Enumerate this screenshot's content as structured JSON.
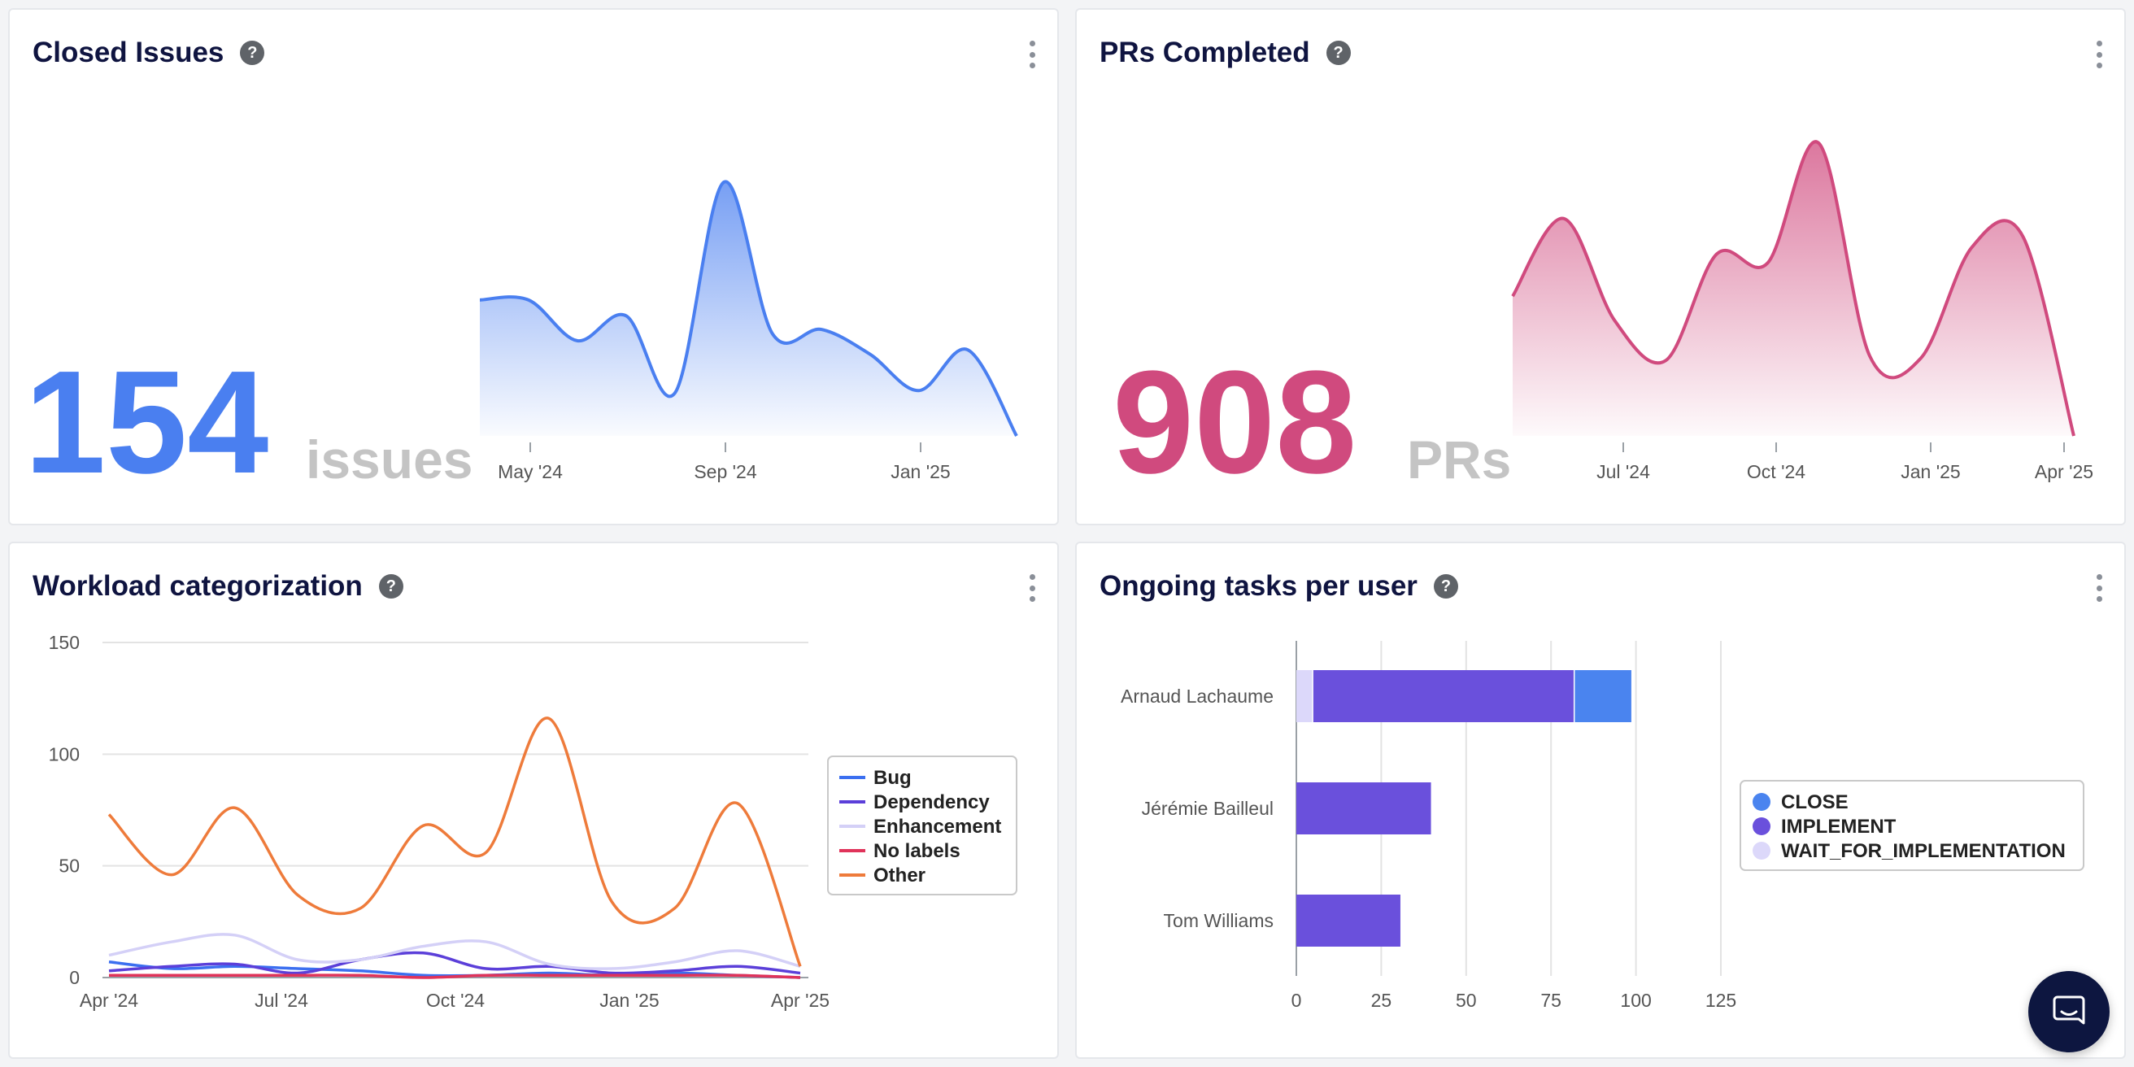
{
  "closed_issues": {
    "title": "Closed Issues",
    "help": "?",
    "value": "154",
    "unit": "issues",
    "color": "#4a7ff0",
    "chart_data": {
      "type": "area",
      "x_ticks": [
        "May '24",
        "Sep '24",
        "Jan '25"
      ],
      "values": [
        60,
        60,
        42,
        53,
        19,
        112,
        45,
        47,
        36,
        20,
        38,
        0
      ],
      "ylim": [
        0,
        112
      ]
    }
  },
  "prs_completed": {
    "title": "PRs Completed",
    "help": "?",
    "value": "908",
    "unit": "PRs",
    "color": "#d04a7e",
    "chart_data": {
      "type": "area",
      "x_ticks": [
        "Jul '24",
        "Oct '24",
        "Jan '25",
        "Apr '25"
      ],
      "values": [
        63,
        98,
        52,
        34,
        82,
        78,
        132,
        36,
        35,
        85,
        90,
        0
      ],
      "ylim": [
        0,
        132
      ]
    }
  },
  "workload": {
    "title": "Workload categorization",
    "help": "?",
    "chart_data": {
      "type": "line",
      "x_ticks": [
        "Apr '24",
        "Jul '24",
        "Oct '24",
        "Jan '25",
        "Apr '25"
      ],
      "y_ticks": [
        "150",
        "100",
        "50",
        "0"
      ],
      "ylim": [
        0,
        150
      ],
      "legend_position": "right",
      "series": [
        {
          "name": "Bug",
          "color": "#3b6ff0",
          "values": [
            7,
            4,
            5,
            4,
            3,
            1,
            1,
            2,
            1,
            2,
            1,
            0
          ]
        },
        {
          "name": "Dependency",
          "color": "#5b3fd9",
          "values": [
            3,
            5,
            6,
            2,
            8,
            11,
            4,
            5,
            2,
            3,
            5,
            2
          ]
        },
        {
          "name": "Enhancement",
          "color": "#d4d0f7",
          "values": [
            10,
            16,
            19,
            8,
            8,
            14,
            16,
            6,
            4,
            7,
            12,
            5
          ]
        },
        {
          "name": "No labels",
          "color": "#e0335a",
          "values": [
            1,
            1,
            1,
            1,
            1,
            0,
            1,
            1,
            1,
            1,
            1,
            0
          ]
        },
        {
          "name": "Other",
          "color": "#ee7b3b",
          "values": [
            73,
            46,
            76,
            37,
            31,
            68,
            56,
            116,
            34,
            31,
            78,
            5
          ]
        }
      ]
    }
  },
  "ongoing": {
    "title": "Ongoing tasks per user",
    "help": "?",
    "chart_data": {
      "type": "bar",
      "orientation": "horizontal",
      "stacked": true,
      "categories": [
        "Arnaud Lachaume",
        "Jérémie Bailleul",
        "Tom Williams"
      ],
      "x_ticks": [
        "0",
        "25",
        "50",
        "75",
        "100",
        "125"
      ],
      "xlim": [
        0,
        125
      ],
      "legend_position": "right",
      "series": [
        {
          "name": "WAIT_FOR_IMPLEMENTATION",
          "color": "#dcd8fa",
          "values": [
            5,
            0,
            0
          ]
        },
        {
          "name": "IMPLEMENT",
          "color": "#6a50dc",
          "values": [
            77,
            40,
            31
          ]
        },
        {
          "name": "CLOSE",
          "color": "#4a84ef",
          "values": [
            17,
            0,
            0
          ]
        }
      ],
      "legend_order": [
        "CLOSE",
        "IMPLEMENT",
        "WAIT_FOR_IMPLEMENTATION"
      ]
    }
  },
  "chat": {
    "icon": "chat-icon"
  }
}
